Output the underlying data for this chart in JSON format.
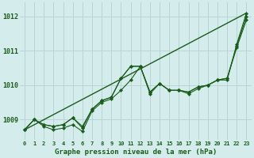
{
  "title": "Graphe pression niveau de la mer (hPa)",
  "bg_color": "#d4ecec",
  "grid_color": "#b8d4d4",
  "line_color": "#1a5c1a",
  "marker_color": "#1a5c1a",
  "ylim": [
    1008.4,
    1012.4
  ],
  "xlim": [
    -0.5,
    23.5
  ],
  "yticks": [
    1009,
    1010,
    1011,
    1012
  ],
  "xtick_labels": [
    "0",
    "1",
    "2",
    "3",
    "4",
    "5",
    "6",
    "7",
    "8",
    "9",
    "10",
    "11",
    "12",
    "13",
    "14",
    "15",
    "16",
    "17",
    "18",
    "19",
    "20",
    "21",
    "22",
    "23"
  ],
  "trend_line": [
    1008.7,
    1012.1
  ],
  "series": [
    [
      1008.7,
      1009.0,
      1008.85,
      1008.8,
      1008.85,
      1009.05,
      1008.75,
      1009.3,
      1009.55,
      1009.65,
      1010.2,
      1010.55,
      1010.55,
      1009.8,
      1010.05,
      1009.85,
      1009.85,
      1009.8,
      1009.95,
      1010.0,
      1010.15,
      1010.2,
      1011.15,
      1012.0
    ],
    [
      1008.7,
      1009.0,
      1008.8,
      1008.7,
      1008.75,
      1008.85,
      1008.65,
      1009.25,
      1009.5,
      1009.6,
      1009.85,
      1010.15,
      1010.55,
      1009.75,
      1010.05,
      1009.85,
      1009.85,
      1009.75,
      1009.9,
      1010.0,
      1010.15,
      1010.15,
      1011.2,
      1012.1
    ],
    [
      1008.7,
      1009.0,
      1008.85,
      1008.8,
      1008.85,
      1009.05,
      1008.8,
      1009.3,
      1009.55,
      1009.65,
      1010.2,
      1010.55,
      1010.55,
      1009.8,
      1010.05,
      1009.85,
      1009.85,
      1009.8,
      1009.95,
      1010.0,
      1010.15,
      1010.2,
      1011.1,
      1011.9
    ]
  ]
}
